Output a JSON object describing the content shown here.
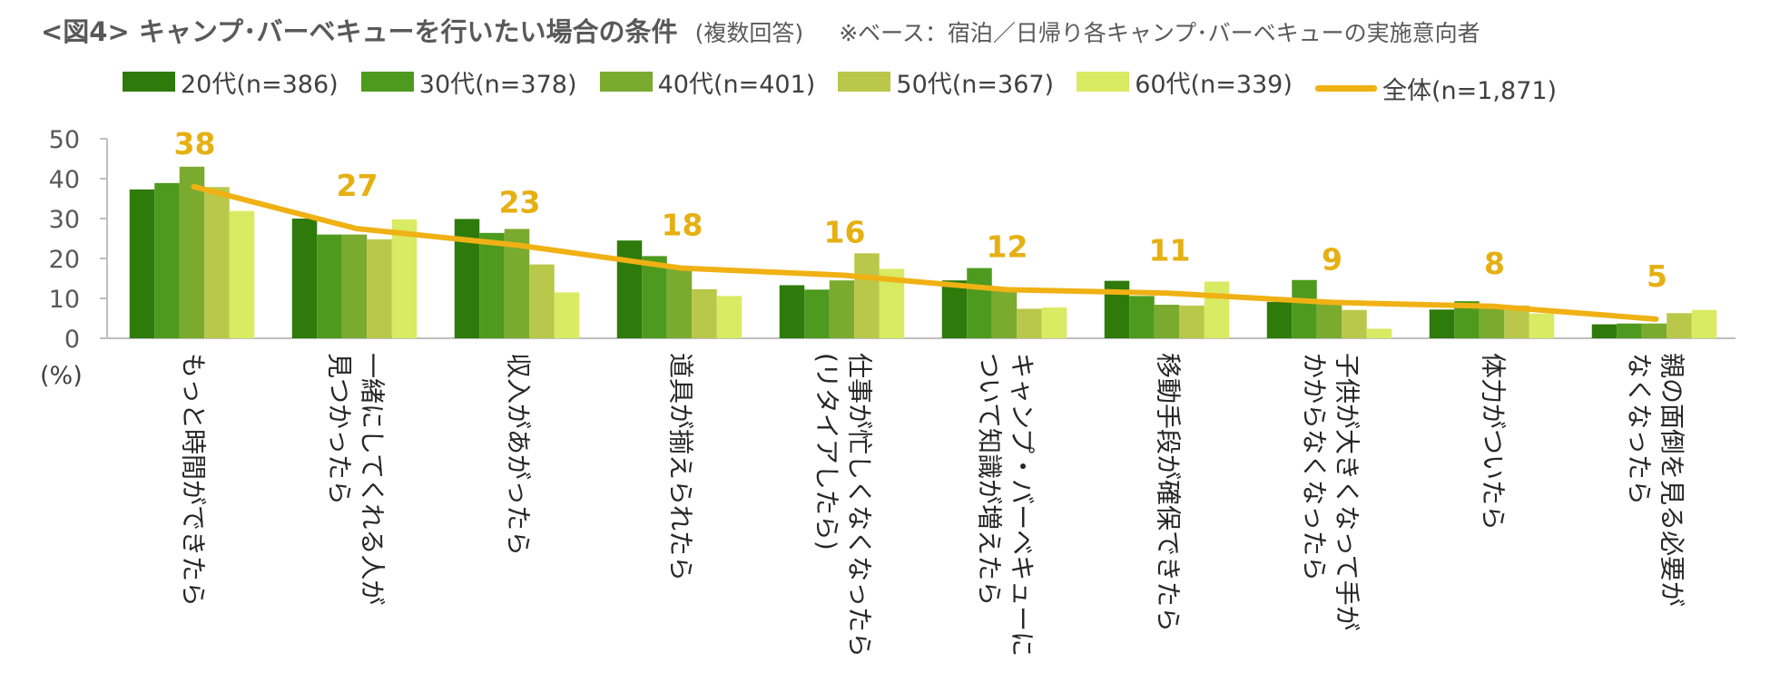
{
  "header": {
    "title": "<図4> キャンプ･バーベキューを行いたい場合の条件",
    "subtitle": "(複数回答)",
    "note": "※ベース：宿泊／日帰り各キャンプ･バーベキューの実施意向者"
  },
  "chart_data": {
    "type": "bar",
    "title": "<図4> キャンプ･バーベキューを行いたい場合の条件",
    "ylabel": "(%)",
    "ylim": [
      0,
      50
    ],
    "yticks": [
      "0",
      "10",
      "20",
      "30",
      "40",
      "50"
    ],
    "categories": [
      [
        "もっと時間ができたら"
      ],
      [
        "一緒にしてくれる人が",
        "見つかったら"
      ],
      [
        "収入があがったら"
      ],
      [
        "道具が揃えられたら"
      ],
      [
        "仕事が忙しくなくなったら",
        "(リタイアしたら)"
      ],
      [
        "キャンプ・バーベキューに",
        "ついて知識が増えたら"
      ],
      [
        "移動手段が確保できたら"
      ],
      [
        "子供が大きくなって手が",
        "かからなくなったら"
      ],
      [
        "体力がついたら"
      ],
      [
        "親の面倒を見る必要が",
        "なくなったら"
      ]
    ],
    "series": [
      {
        "name": "20代(n=386)",
        "color": "#2e7a0a",
        "values": [
          37.3,
          30.0,
          29.9,
          24.5,
          13.3,
          14.5,
          14.4,
          9.1,
          7.2,
          3.5
        ]
      },
      {
        "name": "30代(n=378)",
        "color": "#4e9a1e",
        "values": [
          38.9,
          26.0,
          26.4,
          20.6,
          12.2,
          17.6,
          10.6,
          14.6,
          9.3,
          3.7
        ]
      },
      {
        "name": "40代(n=401)",
        "color": "#7aaa2e",
        "values": [
          43.0,
          26.0,
          27.4,
          18.0,
          14.5,
          12.0,
          8.4,
          8.8,
          8.4,
          3.7
        ]
      },
      {
        "name": "50代(n=367)",
        "color": "#b9c84a",
        "values": [
          37.9,
          24.8,
          18.5,
          12.3,
          21.3,
          7.4,
          8.2,
          7.1,
          8.2,
          6.3
        ]
      },
      {
        "name": "60代(n=339)",
        "color": "#d9ea63",
        "values": [
          31.9,
          29.8,
          11.5,
          10.6,
          17.4,
          7.7,
          14.2,
          2.4,
          6.2,
          7.1
        ]
      }
    ],
    "total": {
      "name": "全体(n=1,871)",
      "color": "#f0b114",
      "values": [
        38,
        27.5,
        23.3,
        17.6,
        15.8,
        12.2,
        11.3,
        9.0,
        8.0,
        4.8
      ],
      "labels": [
        "38",
        "27",
        "23",
        "18",
        "16",
        "12",
        "11",
        "9",
        "8",
        "5"
      ]
    }
  }
}
